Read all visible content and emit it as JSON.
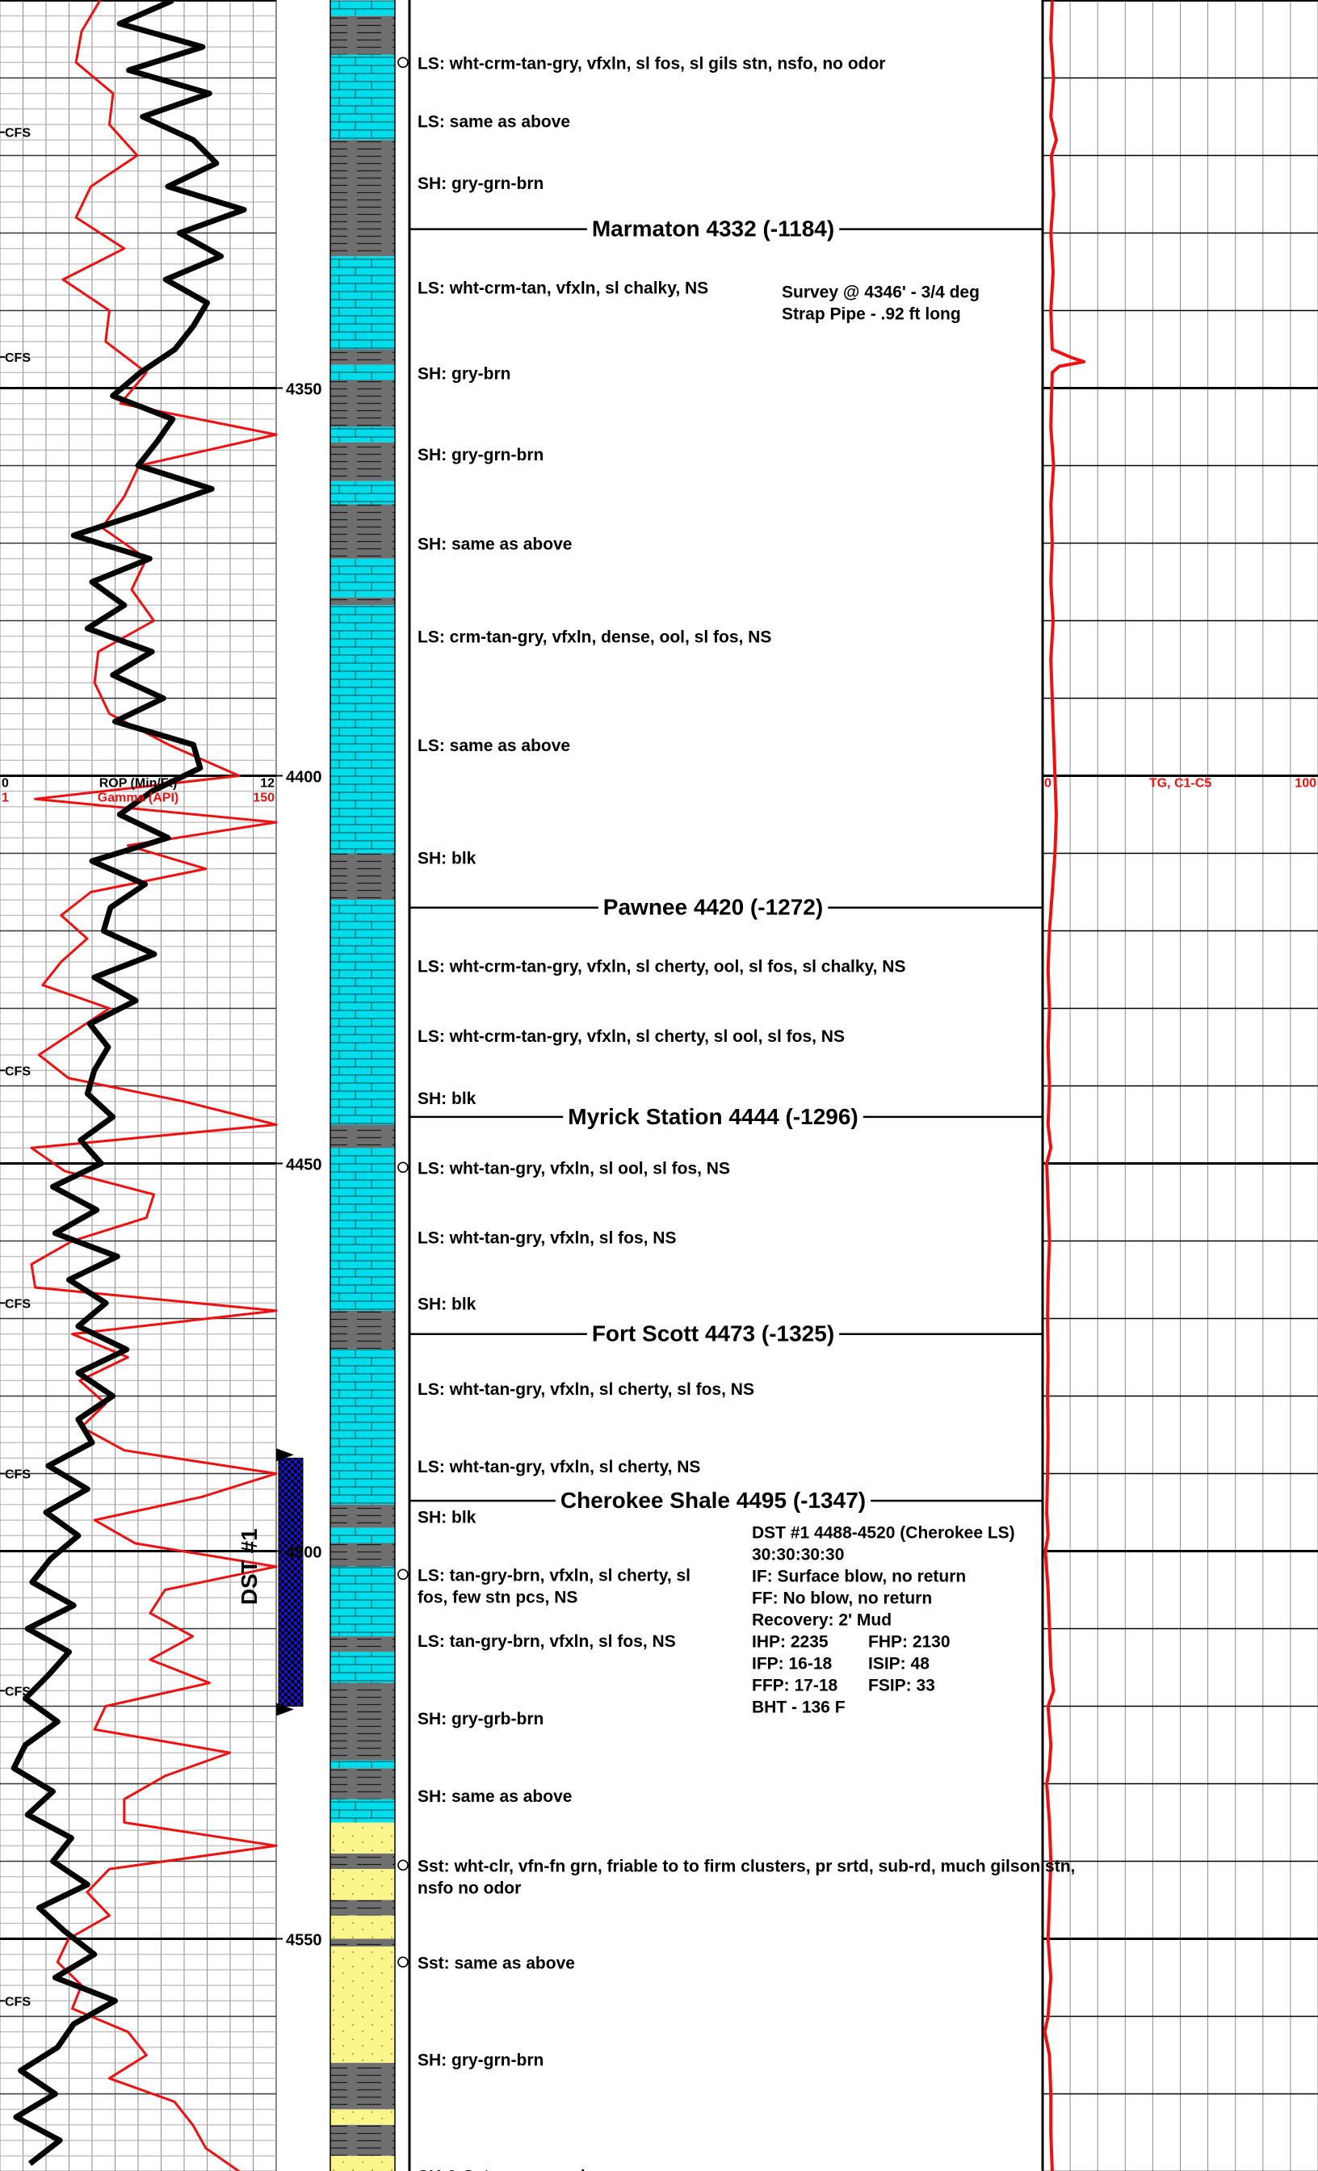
{
  "colors": {
    "rop": "#000000",
    "gamma": "#ee1111",
    "tg": "#ee1111",
    "limestone": "#00dcea",
    "shale": "#6f6f6f",
    "sandstone": "#fbf58c",
    "dst": "#1414d2",
    "grid": "#8c8c8c"
  },
  "chart_data": {
    "type": "line",
    "depth_labels": [
      "4350",
      "4400",
      "4450",
      "4500",
      "4550"
    ],
    "depth_values": [
      4350,
      4400,
      4450,
      4500,
      4550
    ],
    "left_track": {
      "scale_left_top": "0",
      "scale_title_top": "ROP (Min/Ft)",
      "scale_right_top": "12",
      "scale_left_bottom": "1",
      "scale_title_bottom": "Gamma (API)",
      "scale_right_bottom": "150",
      "rop_range": [
        0,
        12
      ],
      "gamma_range": [
        1,
        150
      ],
      "cfs_label": "CFS",
      "cfs_depths": [
        4317,
        4346,
        4438,
        4468,
        4490,
        4518,
        4558
      ]
    },
    "right_track": {
      "scale_left": "0",
      "scale_title": "TG, C1-C5",
      "scale_right": "100",
      "range": [
        0,
        100
      ]
    },
    "rop": {
      "depths": [
        4300,
        4303,
        4306,
        4309,
        4312,
        4315,
        4318,
        4321,
        4324,
        4327,
        4330,
        4333,
        4336,
        4339,
        4342,
        4345,
        4348,
        4351,
        4354,
        4357,
        4360,
        4363,
        4366,
        4369,
        4372,
        4375,
        4378,
        4381,
        4384,
        4387,
        4390,
        4393,
        4396,
        4399,
        4402,
        4405,
        4408,
        4411,
        4414,
        4417,
        4420,
        4423,
        4426,
        4429,
        4432,
        4435,
        4438,
        4441,
        4444,
        4447,
        4450,
        4453,
        4456,
        4459,
        4462,
        4465,
        4468,
        4471,
        4474,
        4477,
        4480,
        4483,
        4486,
        4489,
        4492,
        4495,
        4498,
        4501,
        4504,
        4507,
        4510,
        4513,
        4516,
        4519,
        4522,
        4525,
        4528,
        4531,
        4534,
        4537,
        4540,
        4543,
        4546,
        4549,
        4552,
        4555,
        4558,
        4561,
        4564,
        4567,
        4570,
        4573,
        4576,
        4579
      ],
      "values": [
        7.5,
        5.2,
        8.8,
        5.6,
        9.1,
        6.2,
        8.4,
        9.4,
        7.3,
        10.6,
        7.8,
        9.6,
        7.2,
        9.0,
        8.4,
        7.6,
        6.1,
        4.9,
        7.5,
        6.8,
        6.0,
        9.2,
        6.3,
        3.2,
        6.5,
        4.0,
        5.4,
        3.8,
        6.6,
        4.9,
        7.1,
        5.0,
        8.4,
        8.7,
        6.6,
        5.2,
        7.3,
        4.0,
        6.3,
        4.8,
        4.5,
        6.7,
        4.1,
        5.9,
        3.9,
        4.7,
        4.1,
        3.8,
        4.9,
        3.5,
        4.4,
        2.3,
        4.2,
        2.4,
        5.1,
        3.0,
        4.6,
        3.4,
        5.5,
        3.4,
        4.9,
        3.4,
        4.0,
        2.1,
        3.8,
        2.0,
        3.4,
        2.2,
        1.4,
        3.2,
        1.2,
        3.0,
        2.1,
        1.1,
        2.5,
        1.1,
        0.6,
        2.3,
        1.2,
        3.1,
        2.3,
        3.8,
        1.7,
        2.8,
        4.1,
        2.4,
        5.0,
        3.2,
        2.5,
        0.9,
        2.4,
        0.7,
        2.6,
        1.3
      ]
    },
    "gamma": {
      "depths": [
        4300,
        4304,
        4308,
        4312,
        4316,
        4320,
        4324,
        4328,
        4332,
        4336,
        4340,
        4344,
        4348,
        4352,
        4356,
        4360,
        4364,
        4368,
        4372,
        4376,
        4380,
        4384,
        4388,
        4392,
        4396,
        4400,
        4403,
        4406,
        4409,
        4412,
        4415,
        4418,
        4421,
        4424,
        4427,
        4430,
        4433,
        4436,
        4439,
        4442,
        4445,
        4448,
        4451,
        4454,
        4457,
        4460,
        4463,
        4466,
        4469,
        4472,
        4475,
        4478,
        4481,
        4484,
        4487,
        4490,
        4493,
        4496,
        4499,
        4502,
        4505,
        4508,
        4511,
        4514,
        4517,
        4520,
        4523,
        4526,
        4529,
        4532,
        4535,
        4538,
        4541,
        4544,
        4547,
        4550,
        4553,
        4556,
        4559,
        4562,
        4565,
        4568,
        4571,
        4574,
        4577,
        4580
      ],
      "values": [
        55,
        45,
        42,
        62,
        60,
        75,
        50,
        42,
        68,
        35,
        60,
        58,
        80,
        66,
        152,
        76,
        68,
        56,
        80,
        72,
        84,
        54,
        52,
        60,
        92,
        130,
        20,
        150,
        70,
        112,
        50,
        34,
        48,
        34,
        24,
        60,
        41,
        22,
        38,
        100,
        150,
        18,
        36,
        84,
        80,
        40,
        18,
        20,
        150,
        40,
        70,
        44,
        58,
        45,
        68,
        150,
        110,
        52,
        74,
        150,
        90,
        82,
        105,
        82,
        114,
        58,
        52,
        125,
        90,
        68,
        68,
        150,
        60,
        48,
        60,
        38,
        32,
        45,
        40,
        70,
        80,
        60,
        95,
        105,
        112,
        130
      ]
    },
    "tg": {
      "depths": [
        4300,
        4305,
        4310,
        4315,
        4318,
        4320,
        4325,
        4330,
        4335,
        4340,
        4345,
        4346,
        4346.6,
        4347.2,
        4348,
        4355,
        4360,
        4365,
        4370,
        4375,
        4380,
        4385,
        4390,
        4395,
        4400,
        4405,
        4410,
        4415,
        4420,
        4425,
        4430,
        4435,
        4440,
        4445,
        4448,
        4450,
        4455,
        4460,
        4465,
        4470,
        4475,
        4480,
        4485,
        4490,
        4495,
        4498,
        4500,
        4505,
        4510,
        4515,
        4518,
        4520,
        4525,
        4528,
        4530,
        4535,
        4540,
        4545,
        4550,
        4555,
        4560,
        4562,
        4565,
        4570,
        4575,
        4580
      ],
      "values": [
        3.5,
        3.0,
        4.0,
        3.0,
        5.0,
        3.2,
        4.0,
        3.0,
        3.8,
        3.0,
        3.5,
        10.0,
        15.0,
        6.0,
        3.5,
        3.0,
        4.0,
        3.0,
        3.5,
        3.0,
        3.8,
        3.0,
        3.5,
        4.0,
        4.5,
        5.0,
        4.5,
        3.5,
        2.5,
        2.0,
        2.5,
        2.0,
        2.5,
        2.0,
        3.0,
        1.5,
        2.0,
        2.5,
        2.0,
        1.8,
        2.0,
        1.8,
        2.0,
        1.8,
        1.5,
        2.0,
        1.0,
        2.0,
        2.5,
        3.0,
        4.0,
        2.0,
        3.0,
        2.5,
        1.5,
        2.5,
        3.0,
        2.5,
        2.0,
        3.0,
        2.0,
        0.8,
        2.5,
        3.0,
        3.0,
        3.5
      ]
    },
    "lithology": [
      {
        "type": "limestone",
        "from": 4300,
        "to": 4302
      },
      {
        "type": "shale",
        "from": 4302,
        "to": 4307
      },
      {
        "type": "limestone",
        "from": 4307,
        "to": 4318
      },
      {
        "type": "shale",
        "from": 4318,
        "to": 4333
      },
      {
        "type": "limestone",
        "from": 4333,
        "to": 4345
      },
      {
        "type": "shale",
        "from": 4345,
        "to": 4347
      },
      {
        "type": "limestone",
        "from": 4347,
        "to": 4349
      },
      {
        "type": "shale",
        "from": 4349,
        "to": 4355
      },
      {
        "type": "limestone",
        "from": 4355,
        "to": 4357
      },
      {
        "type": "shale",
        "from": 4357,
        "to": 4362
      },
      {
        "type": "limestone",
        "from": 4362,
        "to": 4365
      },
      {
        "type": "shale",
        "from": 4365,
        "to": 4372
      },
      {
        "type": "limestone",
        "from": 4372,
        "to": 4377
      },
      {
        "type": "shale",
        "from": 4377,
        "to": 4378
      },
      {
        "type": "limestone",
        "from": 4378,
        "to": 4410
      },
      {
        "type": "shale",
        "from": 4410,
        "to": 4416
      },
      {
        "type": "limestone",
        "from": 4416,
        "to": 4445
      },
      {
        "type": "shale",
        "from": 4445,
        "to": 4448
      },
      {
        "type": "limestone",
        "from": 4448,
        "to": 4469
      },
      {
        "type": "shale",
        "from": 4469,
        "to": 4474
      },
      {
        "type": "limestone",
        "from": 4474,
        "to": 4494
      },
      {
        "type": "shale",
        "from": 4494,
        "to": 4497
      },
      {
        "type": "limestone",
        "from": 4497,
        "to": 4499
      },
      {
        "type": "shale",
        "from": 4499,
        "to": 4502
      },
      {
        "type": "limestone",
        "from": 4502,
        "to": 4511
      },
      {
        "type": "shale",
        "from": 4511,
        "to": 4513
      },
      {
        "type": "limestone",
        "from": 4513,
        "to": 4517
      },
      {
        "type": "shale",
        "from": 4517,
        "to": 4527
      },
      {
        "type": "limestone",
        "from": 4527,
        "to": 4528
      },
      {
        "type": "shale",
        "from": 4528,
        "to": 4532
      },
      {
        "type": "limestone",
        "from": 4532,
        "to": 4535
      },
      {
        "type": "sandstone",
        "from": 4535,
        "to": 4539
      },
      {
        "type": "shale",
        "from": 4539,
        "to": 4541
      },
      {
        "type": "sandstone",
        "from": 4541,
        "to": 4545
      },
      {
        "type": "shale",
        "from": 4545,
        "to": 4547
      },
      {
        "type": "sandstone",
        "from": 4547,
        "to": 4550
      },
      {
        "type": "shale",
        "from": 4550,
        "to": 4551
      },
      {
        "type": "sandstone",
        "from": 4551,
        "to": 4566
      },
      {
        "type": "shale",
        "from": 4566,
        "to": 4572
      },
      {
        "type": "sandstone",
        "from": 4572,
        "to": 4574
      },
      {
        "type": "shale",
        "from": 4574,
        "to": 4578
      },
      {
        "type": "sandstone",
        "from": 4578,
        "to": 4580
      }
    ],
    "dst_interval": {
      "label": "DST #1",
      "from": 4488,
      "to": 4520
    }
  },
  "descriptions": [
    {
      "depth": 4308,
      "text": "LS: wht-crm-tan-gry, vfxln, sl fos, sl gils stn, nsfo, no odor",
      "circle": true
    },
    {
      "depth": 4315.5,
      "text": "LS: same as above",
      "circle": false
    },
    {
      "depth": 4323.5,
      "text": "SH: gry-grn-brn",
      "circle": false
    },
    {
      "depth": 4337,
      "text": "LS: wht-crm-tan, vfxln, sl chalky, NS",
      "circle": false
    },
    {
      "depth": 4348,
      "text": "SH: gry-brn",
      "circle": false
    },
    {
      "depth": 4358.5,
      "text": "SH: gry-grn-brn",
      "circle": false
    },
    {
      "depth": 4370,
      "text": "SH: same as above",
      "circle": false
    },
    {
      "depth": 4382,
      "text": "LS: crm-tan-gry, vfxln, dense, ool, sl fos, NS",
      "circle": false
    },
    {
      "depth": 4396,
      "text": "LS: same as above",
      "circle": false
    },
    {
      "depth": 4410.5,
      "text": "SH: blk",
      "circle": false
    },
    {
      "depth": 4424.5,
      "text": "LS: wht-crm-tan-gry, vfxln, sl cherty, ool, sl fos, sl chalky, NS",
      "circle": false
    },
    {
      "depth": 4433.5,
      "text": "LS: wht-crm-tan-gry, vfxln, sl cherty, sl ool, sl fos, NS",
      "circle": false
    },
    {
      "depth": 4441.5,
      "text": "SH: blk",
      "circle": false
    },
    {
      "depth": 4450.5,
      "text": "LS: wht-tan-gry, vfxln, sl ool, sl fos, NS",
      "circle": true
    },
    {
      "depth": 4459.5,
      "text": "LS: wht-tan-gry, vfxln, sl fos, NS",
      "circle": false
    },
    {
      "depth": 4468,
      "text": "SH: blk",
      "circle": false
    },
    {
      "depth": 4479,
      "text": "LS: wht-tan-gry, vfxln, sl cherty, sl fos, NS",
      "circle": false
    },
    {
      "depth": 4489,
      "text": "LS: wht-tan-gry, vfxln, sl cherty, NS",
      "circle": false
    },
    {
      "depth": 4495.5,
      "text": "SH: blk",
      "circle": false
    },
    {
      "depth": 4503,
      "text": "LS: tan-gry-brn, vfxln, sl cherty, sl",
      "text2": "fos, few stn pcs, NS",
      "circle": true
    },
    {
      "depth": 4511.5,
      "text": "LS: tan-gry-brn, vfxln, sl fos, NS",
      "circle": false
    },
    {
      "depth": 4521.5,
      "text": "SH: gry-grb-brn",
      "circle": false
    },
    {
      "depth": 4531.5,
      "text": "SH: same as above",
      "circle": false
    },
    {
      "depth": 4540.5,
      "text": "Sst: wht-clr, vfn-fn grn, friable to to firm clusters, pr srtd, sub-rd, much gilson stn,",
      "text2": "nsfo no odor",
      "circle": true
    },
    {
      "depth": 4553,
      "text": "Sst: same as above",
      "circle": true
    },
    {
      "depth": 4565.5,
      "text": "SH: gry-grn-brn",
      "circle": false
    },
    {
      "depth": 4580.5,
      "text": "SH & Sst: same as above",
      "circle": false
    }
  ],
  "tops": [
    {
      "depth": 4329.5,
      "label": "Marmaton 4332 (-1184)"
    },
    {
      "depth": 4417,
      "label": "Pawnee 4420 (-1272)"
    },
    {
      "depth": 4444,
      "label": "Myrick Station 4444 (-1296)"
    },
    {
      "depth": 4472,
      "label": "Fort Scott 4473 (-1325)"
    },
    {
      "depth": 4493.5,
      "label": "Cherokee Shale 4495 (-1347)"
    }
  ],
  "notes": {
    "survey": [
      "Survey @ 4346' - 3/4 deg",
      "Strap Pipe - .92 ft long"
    ],
    "dst_block": [
      "DST #1 4488-4520 (Cherokee LS)",
      "30:30:30:30",
      "IF: Surface blow, no return",
      "FF: No blow, no return",
      "Recovery: 2' Mud"
    ],
    "dst_pairs": [
      [
        "IHP: 2235",
        "FHP: 2130"
      ],
      [
        "IFP: 16-18",
        "ISIP: 48"
      ],
      [
        "FFP: 17-18",
        "FSIP: 33"
      ]
    ],
    "bht": "BHT - 136 F"
  }
}
